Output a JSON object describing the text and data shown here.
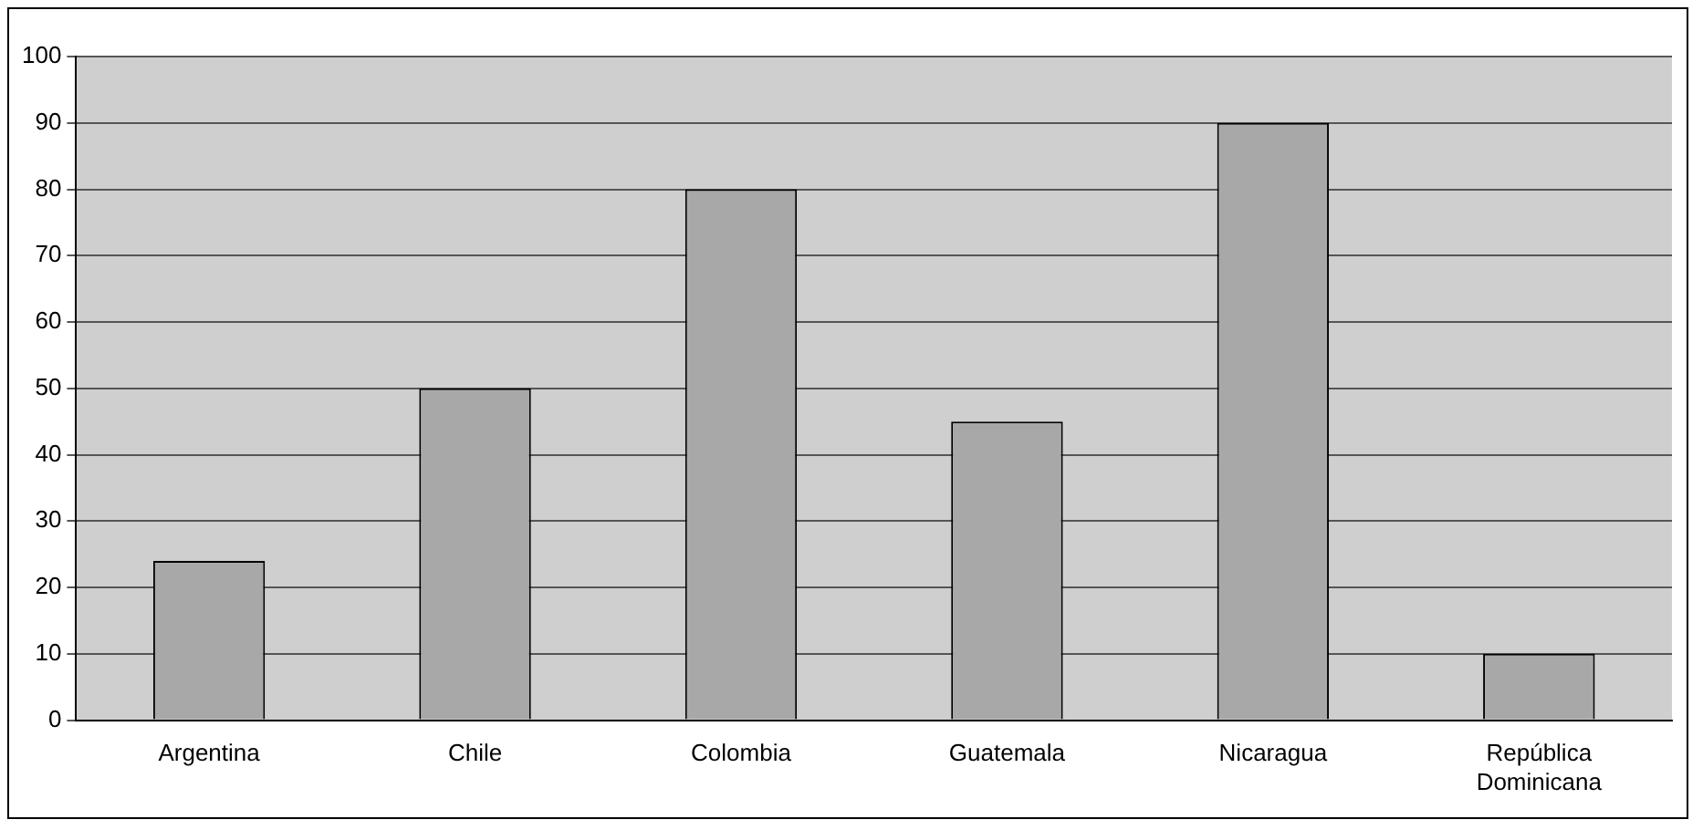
{
  "chart_data": {
    "type": "bar",
    "categories": [
      "Argentina",
      "Chile",
      "Colombia",
      "Guatemala",
      "Nicaragua",
      "República Dominicana"
    ],
    "values": [
      24,
      50,
      80,
      45,
      90,
      10
    ],
    "color": "#a8a8a8",
    "ylim": [
      0,
      100
    ],
    "yticks": [
      0,
      10,
      20,
      30,
      40,
      50,
      60,
      70,
      80,
      90,
      100
    ],
    "grid": "y",
    "legend": false
  }
}
